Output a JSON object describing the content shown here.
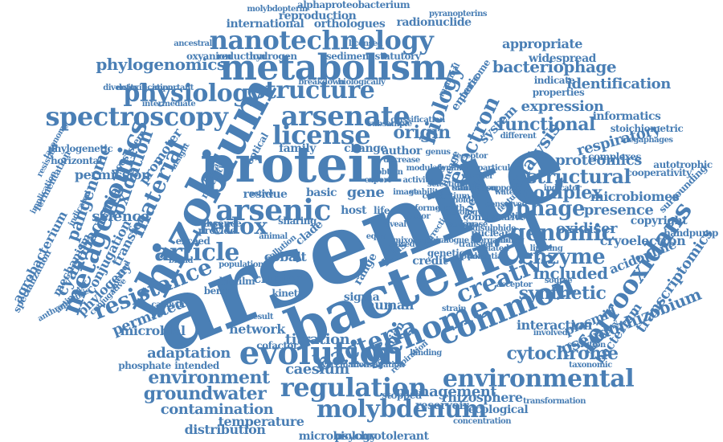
{
  "theme": {
    "word_color": "#4a7fb5",
    "background": "#ffffff"
  },
  "words": [
    "arsenite",
    "bacterial",
    "protein",
    "rhizobium",
    "arsenic",
    "metabolism",
    "nanotechnology",
    "genome",
    "common",
    "regulation",
    "environmental",
    "molybdenum",
    "evolution",
    "spectroscopy",
    "arsenate",
    "license",
    "structure",
    "physiology",
    "metagenomics",
    "genomic",
    "creative",
    "enzyme",
    "bacteria",
    "resistance",
    "article",
    "environment",
    "groundwater",
    "ferrooxidans",
    "functional",
    "phage",
    "electron",
    "material",
    "biology",
    "structural",
    "complex",
    "synthetic",
    "cytochrome",
    "pseudorhizobium",
    "transcriptomics",
    "phylogenomics",
    "expression",
    "analysis",
    "proteomics",
    "included",
    "adaptation",
    "contamination",
    "redox",
    "cyanobacteria",
    "oxidation",
    "identification",
    "bacteriophage",
    "respiratory",
    "presence",
    "microbiomes",
    "cryoelectron",
    "acidophile",
    "oxidiser",
    "gene",
    "origin",
    "science",
    "clade",
    "cluster",
    "titration",
    "caesium",
    "network",
    "permitted",
    "microbial",
    "phylogeny",
    "conjugation",
    "transfer",
    "promoter",
    "permission",
    "agrobacterium",
    "mechanism",
    "specialization",
    "pangenome",
    "phylogenetic",
    "horizontal",
    "fermentation",
    "ecosystem",
    "management",
    "rhizosphere",
    "distribution",
    "temperature",
    "microbiology",
    "psychrotolerant",
    "ecological",
    "reservoir",
    "stopped",
    "interaction",
    "plasmid",
    "bacterium",
    "human",
    "cobalt",
    "credit",
    "pilus",
    "biofilm",
    "bengal",
    "kinetic",
    "sigma",
    "range",
    "host",
    "life",
    "isolation",
    "cofactor",
    "appropriate",
    "widespread",
    "orthologues",
    "radionuclide",
    "reproduction",
    "international",
    "alphaproteobacterium",
    "molybdopterin",
    "pyranopterins",
    "informatics",
    "stoichiometric",
    "megaphages",
    "complexes",
    "cooperativity",
    "copyright",
    "handpump",
    "autotrophic",
    "surrounding",
    "taxonomic",
    "transformation",
    "concentration",
    "phosphate",
    "intended",
    "catalytic",
    "exceed",
    "provide",
    "absence",
    "residue",
    "basic",
    "active",
    "family",
    "change",
    "author",
    "optical",
    "motility",
    "faecal",
    "insight",
    "sharing",
    "comparative",
    "nuclear",
    "specific",
    "lineage",
    "system",
    "enteric",
    "proteome",
    "oxyanion",
    "reduction",
    "hydrogen",
    "sediment",
    "statutory",
    "licensed",
    "ancestral",
    "important",
    "detoxification",
    "diversity",
    "intermediate",
    "indicate",
    "properties",
    "taxonomy",
    "resistant",
    "implication",
    "indicated",
    "anthroponosis",
    "antiporter",
    "conjugative",
    "cultured",
    "mammal",
    "biologically",
    "breakdown",
    "desorption",
    "inorganic",
    "disulphide",
    "potential",
    "related",
    "sibling",
    "limiting",
    "acceptor",
    "involved",
    "regulatory",
    "secretion",
    "respiration",
    "binding",
    "investigation",
    "vaccination",
    "pollution",
    "population",
    "animal",
    "correction",
    "mixotrophic",
    "genetic",
    "broad",
    "strain",
    "result",
    "water",
    "source",
    "indicator",
    "different",
    "receptor",
    "particular",
    "classification",
    "subsample",
    "support",
    "conserved",
    "feature",
    "holder",
    "translation",
    "decrease",
    "modulate",
    "growth",
    "activity",
    "stability",
    "selection",
    "consortium",
    "ecology",
    "reveal",
    "factor",
    "sensor",
    "solved",
    "equal",
    "image",
    "obtain",
    "analogue",
    "transport",
    "uptake",
    "export",
    "dynamic",
    "genus",
    "marker",
    "kinase",
    "formed",
    "shift",
    "membrane",
    "cellular",
    "rate",
    "level",
    "type",
    "role",
    "gain",
    "input"
  ]
}
